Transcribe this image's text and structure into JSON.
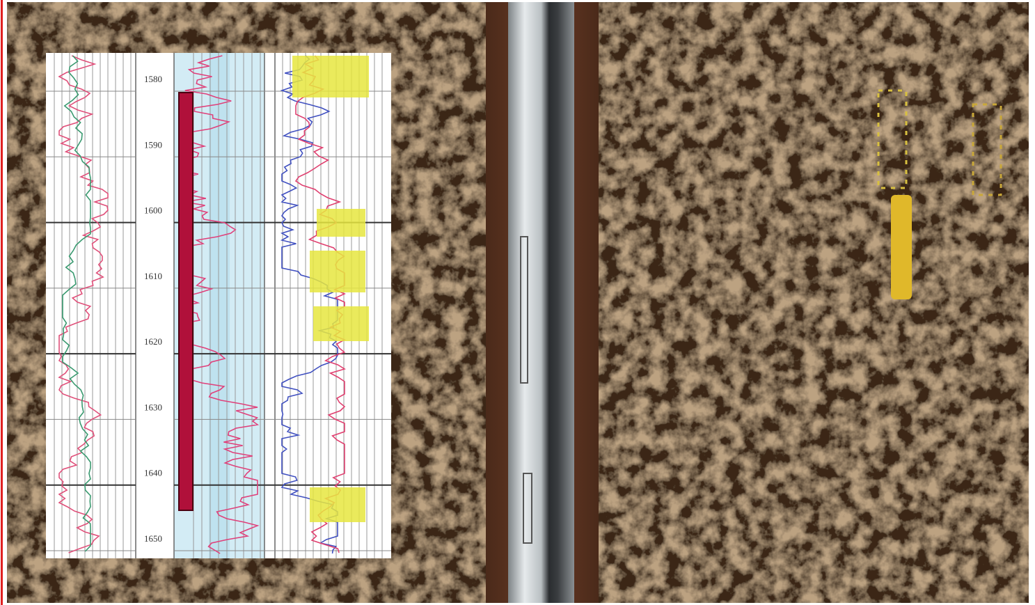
{
  "well_log": {
    "depth_labels": [
      1580,
      1590,
      1600,
      1610,
      1620,
      1630,
      1640,
      1650
    ]
  }
}
